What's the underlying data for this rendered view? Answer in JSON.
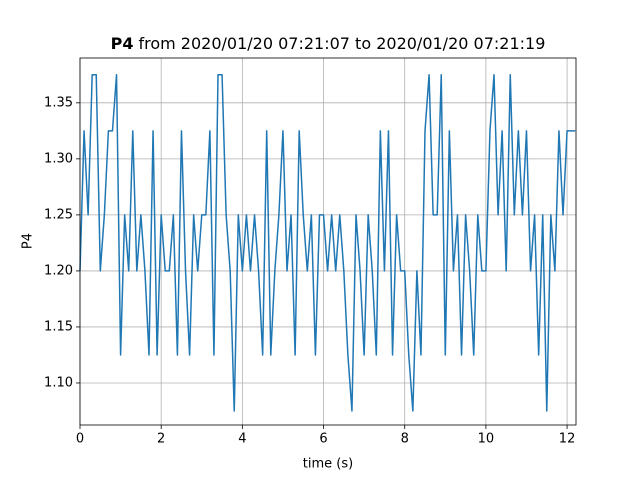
{
  "chart_data": {
    "type": "line",
    "title_bold": "P4",
    "title": "from 2020/01/20 07:21:07 to 2020/01/20 07:21:19",
    "xlabel": "time (s)",
    "ylabel": "P4",
    "color": "#1f77b4",
    "grid": true,
    "xlim": [
      0,
      12.22
    ],
    "ylim": [
      1.0625,
      1.39
    ],
    "xticks": [
      0,
      2,
      4,
      6,
      8,
      10,
      12
    ],
    "yticks": [
      {
        "value": 1.1,
        "label": "1.10"
      },
      1.15,
      {
        "value": 1.2,
        "label": "1.20"
      },
      1.25,
      {
        "value": 1.3,
        "label": "1.30"
      },
      1.35
    ],
    "x": [
      0,
      0.1,
      0.2,
      0.3,
      0.4,
      0.5,
      0.6,
      0.7,
      0.8,
      0.9,
      1.0,
      1.1,
      1.2,
      1.3,
      1.4,
      1.5,
      1.6,
      1.7,
      1.8,
      1.9,
      2.0,
      2.1,
      2.2,
      2.3,
      2.4,
      2.5,
      2.6,
      2.7,
      2.8,
      2.9,
      3.0,
      3.1,
      3.2,
      3.3,
      3.4,
      3.5,
      3.6,
      3.7,
      3.8,
      3.9,
      4.0,
      4.1,
      4.2,
      4.3,
      4.4,
      4.5,
      4.6,
      4.7,
      4.8,
      4.9,
      5.0,
      5.1,
      5.2,
      5.3,
      5.4,
      5.5,
      5.6,
      5.7,
      5.8,
      5.9,
      6.0,
      6.1,
      6.2,
      6.3,
      6.4,
      6.5,
      6.6,
      6.7,
      6.8,
      6.9,
      7.0,
      7.1,
      7.2,
      7.3,
      7.4,
      7.5,
      7.6,
      7.7,
      7.8,
      7.9,
      8.0,
      8.1,
      8.2,
      8.3,
      8.4,
      8.5,
      8.6,
      8.7,
      8.8,
      8.9,
      9.0,
      9.1,
      9.2,
      9.3,
      9.4,
      9.5,
      9.6,
      9.7,
      9.8,
      9.9,
      10.0,
      10.1,
      10.2,
      10.3,
      10.4,
      10.5,
      10.6,
      10.7,
      10.8,
      10.9,
      11.0,
      11.1,
      11.2,
      11.3,
      11.4,
      11.5,
      11.6,
      11.7,
      11.8,
      11.9,
      12.0,
      12.1,
      12.2
    ],
    "values": [
      1.2,
      1.325,
      1.25,
      1.375,
      1.375,
      1.2,
      1.25,
      1.325,
      1.325,
      1.375,
      1.125,
      1.25,
      1.2,
      1.325,
      1.2,
      1.25,
      1.2,
      1.125,
      1.325,
      1.125,
      1.25,
      1.2,
      1.2,
      1.25,
      1.125,
      1.325,
      1.2,
      1.125,
      1.25,
      1.2,
      1.25,
      1.25,
      1.325,
      1.125,
      1.375,
      1.375,
      1.25,
      1.2,
      1.075,
      1.25,
      1.2,
      1.25,
      1.2,
      1.25,
      1.2,
      1.125,
      1.325,
      1.125,
      1.2,
      1.25,
      1.325,
      1.2,
      1.25,
      1.125,
      1.325,
      1.25,
      1.2,
      1.25,
      1.125,
      1.25,
      1.25,
      1.2,
      1.25,
      1.2,
      1.25,
      1.2,
      1.125,
      1.075,
      1.25,
      1.2,
      1.125,
      1.25,
      1.2,
      1.125,
      1.325,
      1.2,
      1.325,
      1.125,
      1.25,
      1.2,
      1.2,
      1.125,
      1.075,
      1.2,
      1.125,
      1.325,
      1.375,
      1.25,
      1.25,
      1.375,
      1.125,
      1.325,
      1.2,
      1.25,
      1.125,
      1.25,
      1.2,
      1.125,
      1.25,
      1.2,
      1.2,
      1.325,
      1.375,
      1.25,
      1.325,
      1.2,
      1.375,
      1.25,
      1.325,
      1.25,
      1.325,
      1.2,
      1.25,
      1.125,
      1.25,
      1.075,
      1.25,
      1.2,
      1.325,
      1.25,
      1.325,
      1.325,
      1.325
    ]
  }
}
